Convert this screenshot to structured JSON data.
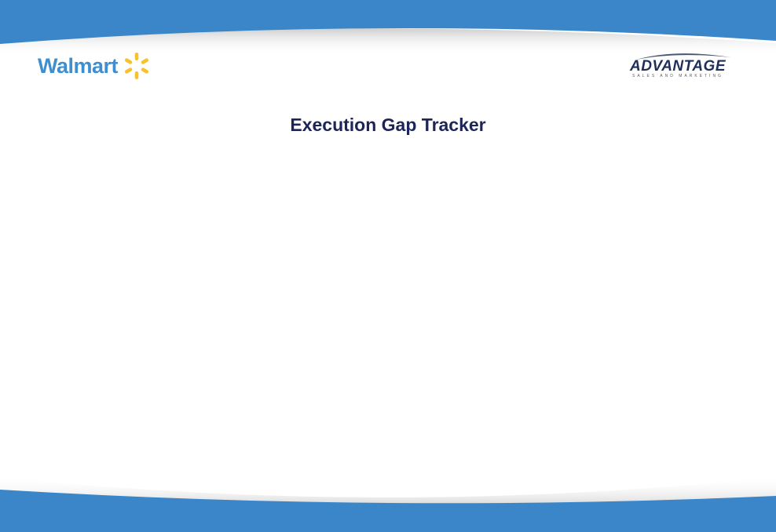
{
  "slide": {
    "title": "Execution Gap Tracker"
  },
  "logos": {
    "left": {
      "text": "Walmart",
      "icon": "walmart-spark-icon",
      "text_color": "#3e8ed0",
      "spark_color": "#f7c22b"
    },
    "right": {
      "text": "ADVANTAGE",
      "subtext": "SALES AND MARKETING",
      "text_color": "#1f2f5a"
    }
  },
  "colors": {
    "band": "#3a86c8",
    "title": "#1d2558",
    "background": "#ffffff"
  }
}
